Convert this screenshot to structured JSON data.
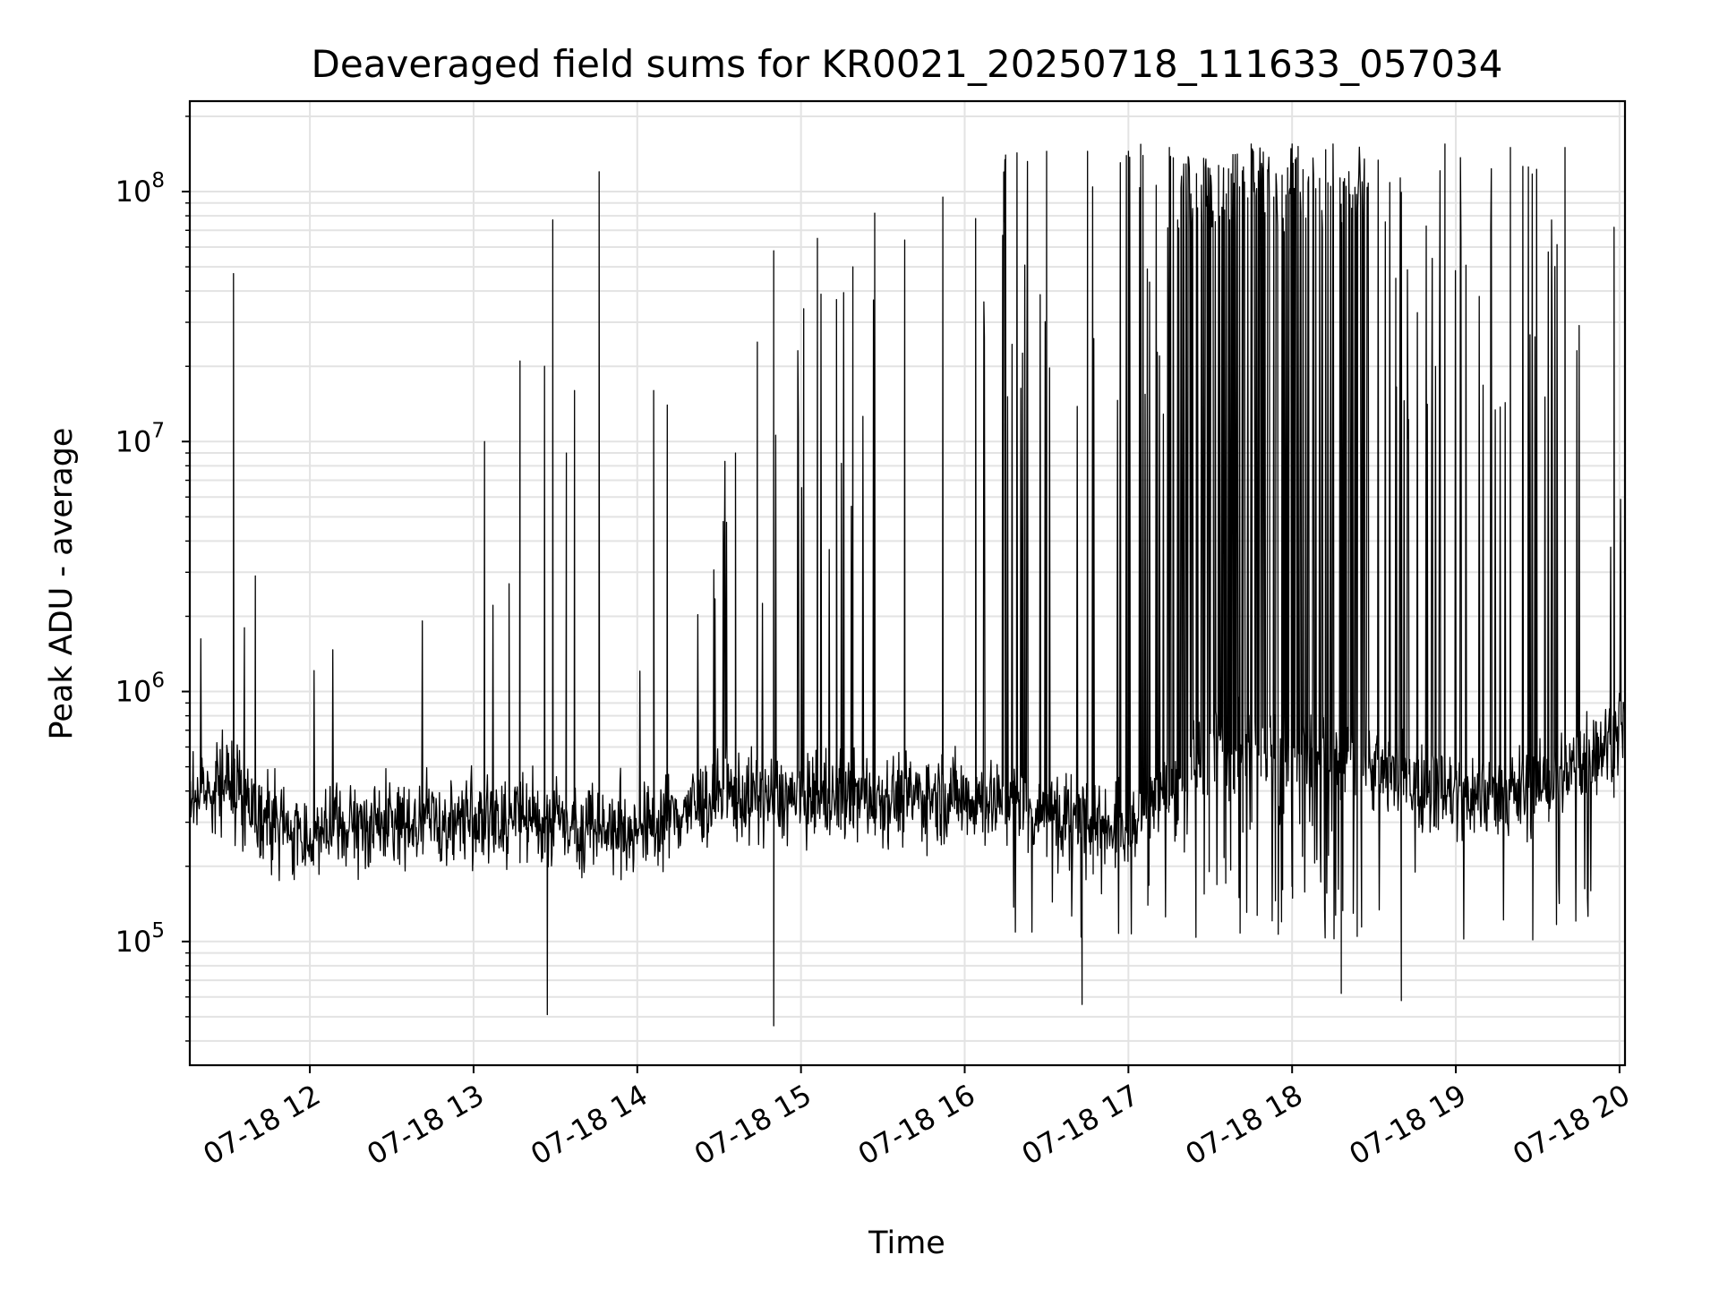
{
  "chart_data": {
    "type": "line",
    "title": "Deaveraged field sums for KR0021_20250718_111633_057034",
    "xlabel": "Time",
    "ylabel": "Peak ADU - average",
    "yscale": "log",
    "ylim": [
      32000,
      230000000
    ],
    "xlim": [
      "2025-07-18 11:16",
      "2025-07-18 20:02"
    ],
    "grid": true,
    "legend": "none",
    "line_color": "#000000",
    "x_ticks": [
      "2025-07-18 12:00",
      "2025-07-18 13:00",
      "2025-07-18 14:00",
      "2025-07-18 15:00",
      "2025-07-18 16:00",
      "2025-07-18 17:00",
      "2025-07-18 18:00",
      "2025-07-18 19:00",
      "2025-07-18 20:00"
    ],
    "x_tick_labels": [
      "07-18 12",
      "07-18 13",
      "07-18 14",
      "07-18 15",
      "07-18 16",
      "07-18 17",
      "07-18 18",
      "07-18 19",
      "07-18 20"
    ],
    "y_tick_labels": [
      {
        "value": 100000,
        "base": "10",
        "exp": "5"
      },
      {
        "value": 1000000,
        "base": "10",
        "exp": "6"
      },
      {
        "value": 10000000,
        "base": "10",
        "exp": "7"
      },
      {
        "value": 100000000,
        "base": "10",
        "exp": "8"
      }
    ],
    "series": [
      {
        "baseline": [
          {
            "x": "2025-07-18 11:16",
            "y": 380000
          },
          {
            "x": "2025-07-18 11:30",
            "y": 450000
          },
          {
            "x": "2025-07-18 11:45",
            "y": 300000
          },
          {
            "x": "2025-07-18 12:00",
            "y": 260000
          },
          {
            "x": "2025-07-18 12:30",
            "y": 300000
          },
          {
            "x": "2025-07-18 13:00",
            "y": 310000
          },
          {
            "x": "2025-07-18 13:30",
            "y": 300000
          },
          {
            "x": "2025-07-18 14:00",
            "y": 280000
          },
          {
            "x": "2025-07-18 14:30",
            "y": 380000
          },
          {
            "x": "2025-07-18 15:00",
            "y": 370000
          },
          {
            "x": "2025-07-18 15:30",
            "y": 380000
          },
          {
            "x": "2025-07-18 16:00",
            "y": 380000
          },
          {
            "x": "2025-07-18 16:30",
            "y": 330000
          },
          {
            "x": "2025-07-18 17:00",
            "y": 300000
          },
          {
            "x": "2025-07-18 17:20",
            "y": 450000
          },
          {
            "x": "2025-07-18 17:30",
            "y": 600000
          },
          {
            "x": "2025-07-18 18:00",
            "y": 600000
          },
          {
            "x": "2025-07-18 18:30",
            "y": 500000
          },
          {
            "x": "2025-07-18 19:00",
            "y": 380000
          },
          {
            "x": "2025-07-18 19:30",
            "y": 400000
          },
          {
            "x": "2025-07-18 20:02",
            "y": 700000
          }
        ],
        "peaks": [
          {
            "x": "2025-07-18 11:40",
            "y": 2900000
          },
          {
            "x": "2025-07-18 11:36",
            "y": 1800000
          },
          {
            "x": "2025-07-18 13:04",
            "y": 10000000
          },
          {
            "x": "2025-07-18 13:13",
            "y": 2700000
          },
          {
            "x": "2025-07-18 13:17",
            "y": 21000000
          },
          {
            "x": "2025-07-18 13:26",
            "y": 20000000
          },
          {
            "x": "2025-07-18 13:29",
            "y": 77000000
          },
          {
            "x": "2025-07-18 13:34",
            "y": 9000000
          },
          {
            "x": "2025-07-18 13:37",
            "y": 16000000
          },
          {
            "x": "2025-07-18 13:46",
            "y": 120000000
          },
          {
            "x": "2025-07-18 14:06",
            "y": 16000000
          },
          {
            "x": "2025-07-18 14:11",
            "y": 14000000
          },
          {
            "x": "2025-07-18 14:36",
            "y": 9000000
          },
          {
            "x": "2025-07-18 14:44",
            "y": 25000000
          },
          {
            "x": "2025-07-18 14:50",
            "y": 58000000
          },
          {
            "x": "2025-07-18 15:01",
            "y": 34000000
          },
          {
            "x": "2025-07-18 15:06",
            "y": 65000000
          },
          {
            "x": "2025-07-18 15:13",
            "y": 37000000
          },
          {
            "x": "2025-07-18 15:19",
            "y": 50000000
          },
          {
            "x": "2025-07-18 15:27",
            "y": 82000000
          },
          {
            "x": "2025-07-18 15:38",
            "y": 64000000
          },
          {
            "x": "2025-07-18 15:52",
            "y": 95000000
          },
          {
            "x": "2025-07-18 16:04",
            "y": 78000000
          },
          {
            "x": "2025-07-18 16:15",
            "y": 140000000
          },
          {
            "x": "2025-07-18 16:30",
            "y": 145000000
          },
          {
            "x": "2025-07-18 16:45",
            "y": 145000000
          },
          {
            "x": "2025-07-18 17:00",
            "y": 145000000
          },
          {
            "x": "2025-07-18 17:15",
            "y": 150000000
          },
          {
            "x": "2025-07-18 17:45",
            "y": 155000000
          },
          {
            "x": "2025-07-18 18:00",
            "y": 155000000
          },
          {
            "x": "2025-07-18 18:15",
            "y": 155000000
          },
          {
            "x": "2025-07-18 18:38",
            "y": 45000000
          },
          {
            "x": "2025-07-18 18:56",
            "y": 155000000
          },
          {
            "x": "2025-07-18 19:20",
            "y": 150000000
          },
          {
            "x": "2025-07-18 19:40",
            "y": 150000000
          },
          {
            "x": "2025-07-18 19:58",
            "y": 72000000
          }
        ],
        "dips": [
          {
            "x": "2025-07-18 11:32",
            "y": 47000000,
            "note": ""
          },
          {
            "x": "2025-07-18 13:27",
            "y": 51000,
            "note": ""
          },
          {
            "x": "2025-07-18 14:50",
            "y": 46000,
            "note": ""
          },
          {
            "x": "2025-07-18 16:43",
            "y": 56000,
            "note": ""
          },
          {
            "x": "2025-07-18 18:18",
            "y": 62000,
            "note": ""
          },
          {
            "x": "2025-07-18 18:40",
            "y": 58000,
            "note": ""
          }
        ]
      }
    ]
  }
}
